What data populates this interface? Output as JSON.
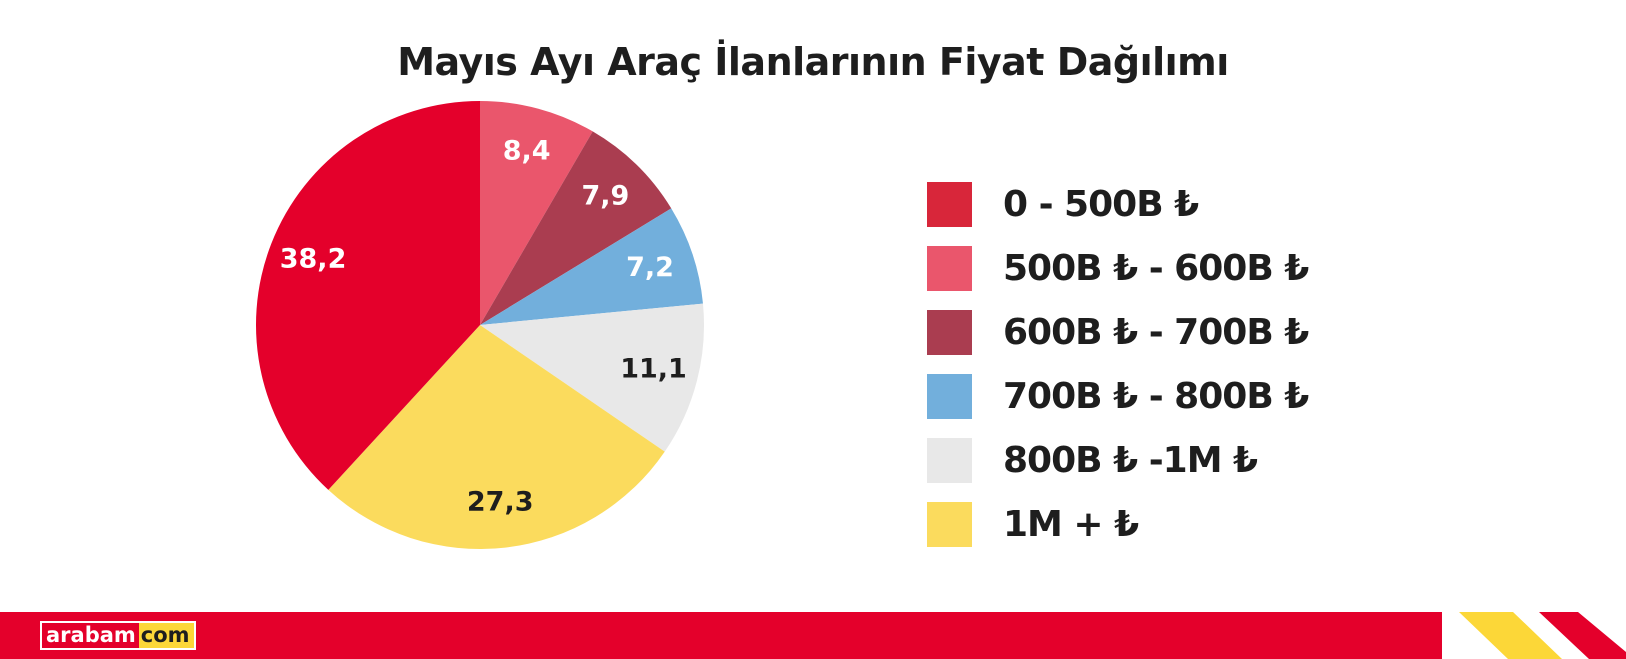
{
  "chart_data": {
    "type": "pie",
    "title": "Mayıs Ayı Araç İlanlarının Fiyat Dağılımı",
    "legend_position": "right",
    "slices": [
      {
        "label": "0 - 500B ₺",
        "value": 38.2,
        "value_label": "38,2",
        "color": "#e4002b",
        "legend_color": "#d8263a",
        "text_color": "#ffffff"
      },
      {
        "label": "500B ₺ - 600B ₺",
        "value": 8.4,
        "value_label": "8,4",
        "color": "#ea566c",
        "legend_color": "#ea566c",
        "text_color": "#ffffff"
      },
      {
        "label": "600B ₺ - 700B ₺",
        "value": 7.9,
        "value_label": "7,9",
        "color": "#aa3d50",
        "legend_color": "#aa3d50",
        "text_color": "#ffffff"
      },
      {
        "label": "700B ₺ - 800B ₺",
        "value": 7.2,
        "value_label": "7,2",
        "color": "#72afdc",
        "legend_color": "#72afdc",
        "text_color": "#ffffff"
      },
      {
        "label": "800B ₺ -1M ₺",
        "value": 11.1,
        "value_label": "11,1",
        "color": "#e8e8e8",
        "legend_color": "#e8e8e8",
        "text_color": "#1e1e1e"
      },
      {
        "label": "1M + ₺",
        "value": 27.3,
        "value_label": "27,3",
        "color": "#fbdb5d",
        "legend_color": "#fbdb5d",
        "text_color": "#1e1e1e"
      }
    ],
    "draw_order": [
      1,
      2,
      3,
      4,
      5,
      0
    ]
  },
  "brand": {
    "logo_left": "arabam",
    "logo_right": "com",
    "primary_color": "#e4002b",
    "accent_color": "#fcd738"
  }
}
